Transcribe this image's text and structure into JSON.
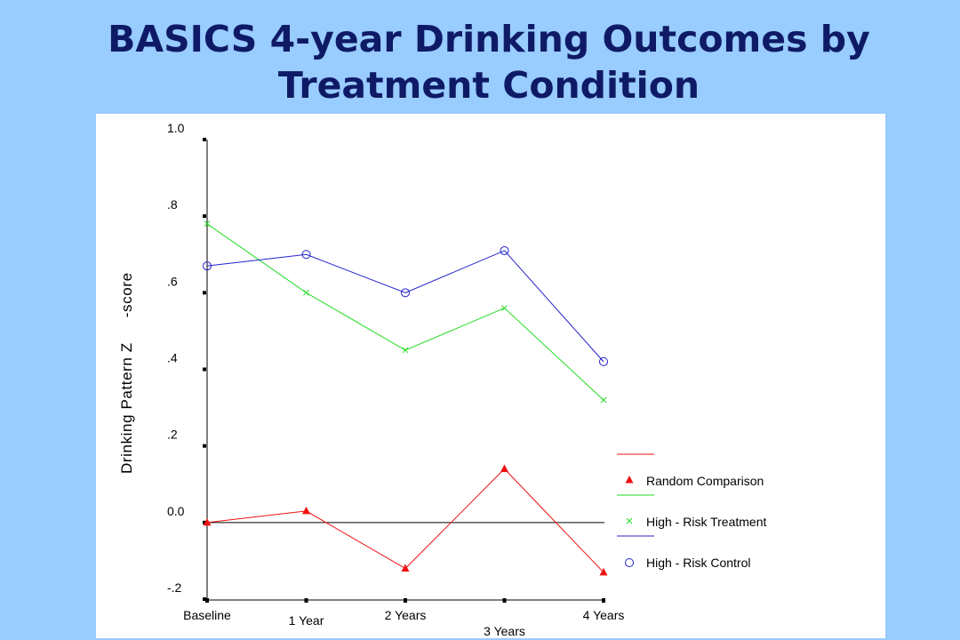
{
  "slide": {
    "title_line1": "BASICS 4-year Drinking Outcomes by",
    "title_line2": "Treatment Condition"
  },
  "colors": {
    "background": "#99ccff",
    "title": "#0f1a66",
    "panel": "#ffffff"
  },
  "chart_data": {
    "type": "line",
    "title": "BASICS 4-year Drinking Outcomes by Treatment Condition",
    "xlabel": "",
    "ylabel": "Drinking Pattern Z -score",
    "ylabel_parts": [
      "Drinking Pattern Z",
      "-score"
    ],
    "categories": [
      "Baseline",
      "1 Year",
      "2 Years",
      "3 Years",
      "4 Years"
    ],
    "ylim": [
      -0.2,
      1.0
    ],
    "yticks": [
      {
        "value": 1.0,
        "label": "1.0"
      },
      {
        "value": 0.8,
        "label": ".8"
      },
      {
        "value": 0.6,
        "label": ".6"
      },
      {
        "value": 0.4,
        "label": ".4"
      },
      {
        "value": 0.2,
        "label": ".2"
      },
      {
        "value": 0.0,
        "label": "0.0"
      },
      {
        "value": -0.2,
        "label": "-.2"
      }
    ],
    "reference_line": 0.0,
    "grid": false,
    "legend_position": "bottom-right",
    "series": [
      {
        "name": "Random Comparison",
        "marker": "triangle",
        "color": "#ee1111",
        "values": [
          0.0,
          0.03,
          -0.12,
          0.14,
          -0.13
        ]
      },
      {
        "name": "High - Risk Treatment",
        "marker": "x",
        "color": "#22dd22",
        "values": [
          0.78,
          0.6,
          0.45,
          0.56,
          0.32
        ]
      },
      {
        "name": "High - Risk Control",
        "marker": "circle",
        "color": "#2222cc",
        "values": [
          0.67,
          0.7,
          0.6,
          0.71,
          0.42
        ]
      }
    ]
  }
}
